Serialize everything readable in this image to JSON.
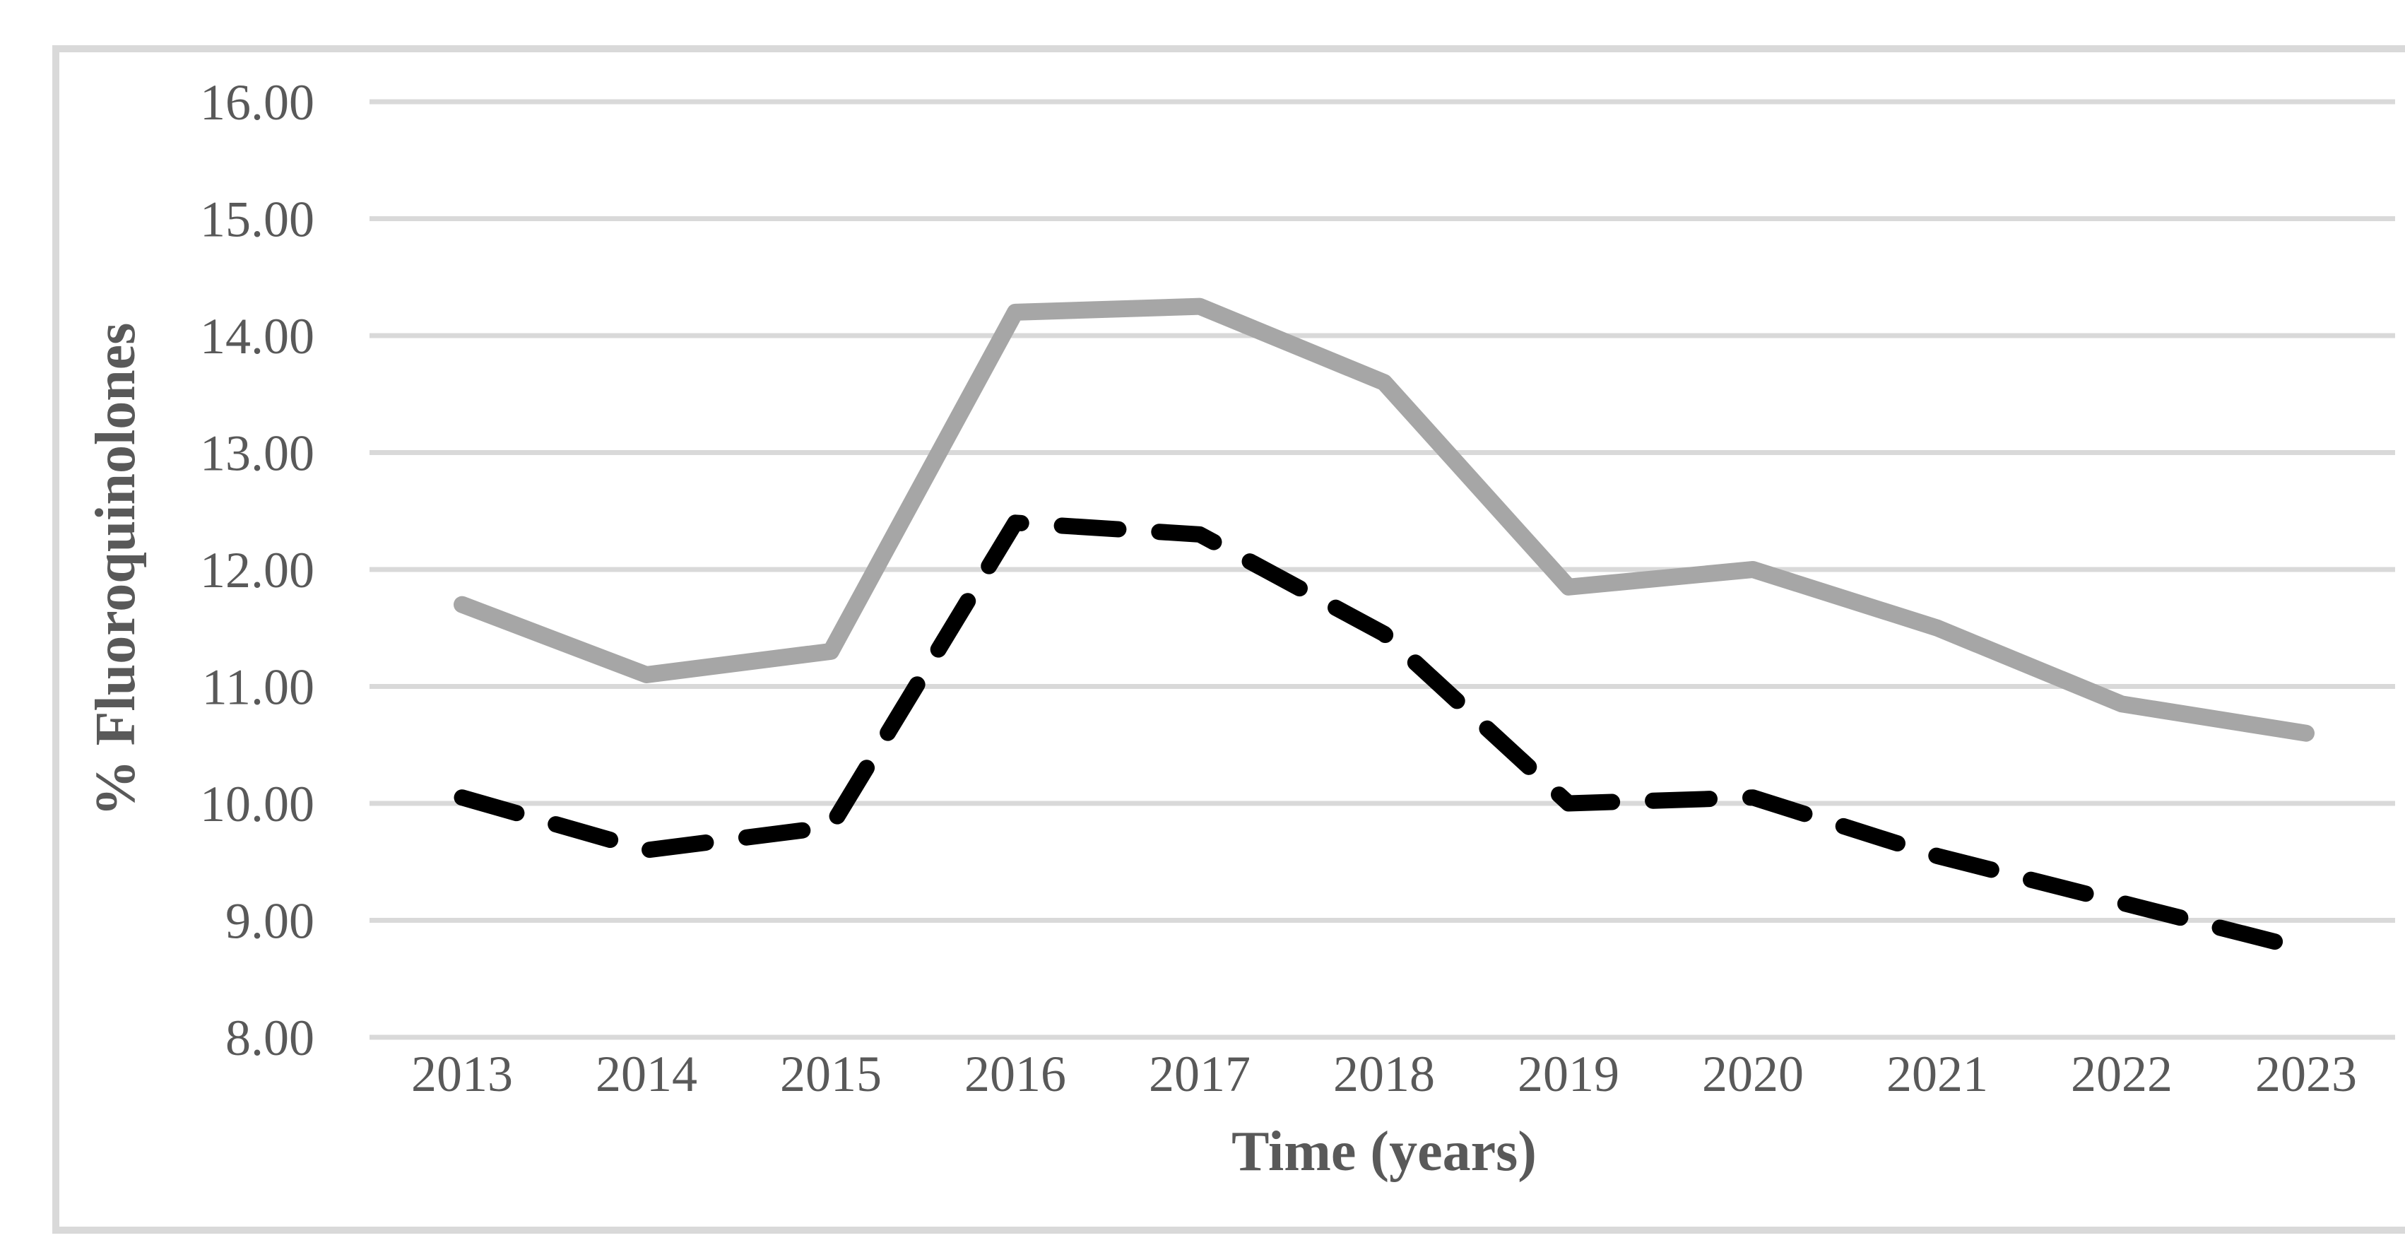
{
  "figure": {
    "background_color": "#ffffff",
    "border_color": "#d9d9d9",
    "text_color": "#595959",
    "gridline_color": "#d9d9d9"
  },
  "chart_data": {
    "type": "line",
    "title": "",
    "xlabel": "Time (years)",
    "ylabel": "% Fluoroquinolones",
    "categories": [
      "2013",
      "2014",
      "2015",
      "2016",
      "2017",
      "2018",
      "2019",
      "2020",
      "2021",
      "2022",
      "2023"
    ],
    "series": [
      {
        "name": "solid-gray-series",
        "color": "#a6a6a6",
        "style": "solid",
        "values": [
          11.7,
          11.1,
          11.3,
          14.2,
          14.25,
          13.6,
          11.85,
          12.0,
          11.5,
          10.85,
          10.6
        ]
      },
      {
        "name": "dashed-black-series",
        "color": "#000000",
        "style": "dashed",
        "values": [
          10.05,
          9.6,
          9.8,
          12.4,
          12.3,
          11.45,
          10.0,
          10.05,
          9.55,
          9.15,
          8.75
        ]
      }
    ],
    "ylim": [
      8,
      16
    ],
    "y_ticks": {
      "values": [
        16,
        15,
        14,
        13,
        12,
        11,
        10,
        9,
        8
      ],
      "labels": [
        "16.00",
        "15.00",
        "14.00",
        "13.00",
        "12.00",
        "11.00",
        "10.00",
        "9.00",
        "8.00"
      ]
    },
    "grid": true,
    "legend": "none"
  }
}
